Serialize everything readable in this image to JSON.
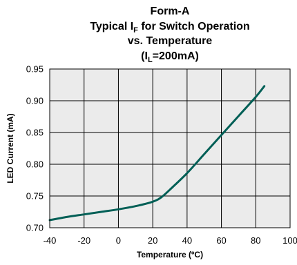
{
  "chart_data": {
    "type": "line",
    "title": {
      "line1": "Form-A",
      "line2_pre": "Typical I",
      "line2_sub": "F",
      "line2_post": " for Switch Operation",
      "line3": "vs. Temperature",
      "line4_pre": "(I",
      "line4_sub": "L",
      "line4_post": "=200mA)"
    },
    "xlabel": "Temperature (ºC)",
    "ylabel": "LED Current (mA)",
    "xlim": [
      -40,
      100
    ],
    "ylim": [
      0.7,
      0.95
    ],
    "x_ticks": [
      -40,
      -20,
      0,
      20,
      40,
      60,
      80,
      100
    ],
    "x_tick_labels": [
      "-40",
      "-20",
      "0",
      "20",
      "40",
      "60",
      "80",
      "100"
    ],
    "y_ticks": [
      0.7,
      0.75,
      0.8,
      0.85,
      0.9,
      0.95
    ],
    "y_tick_labels": [
      "0.70",
      "0.75",
      "0.80",
      "0.85",
      "0.90",
      "0.95"
    ],
    "grid": true,
    "background_color": "#ebebeb",
    "line_color": "#005f56",
    "series": [
      {
        "x": [
          -40,
          -30,
          -20,
          -10,
          0,
          10,
          20,
          25,
          30,
          40,
          50,
          60,
          70,
          80,
          85
        ],
        "y": [
          0.712,
          0.717,
          0.721,
          0.725,
          0.729,
          0.734,
          0.741,
          0.748,
          0.76,
          0.786,
          0.816,
          0.846,
          0.876,
          0.906,
          0.923
        ]
      }
    ]
  }
}
